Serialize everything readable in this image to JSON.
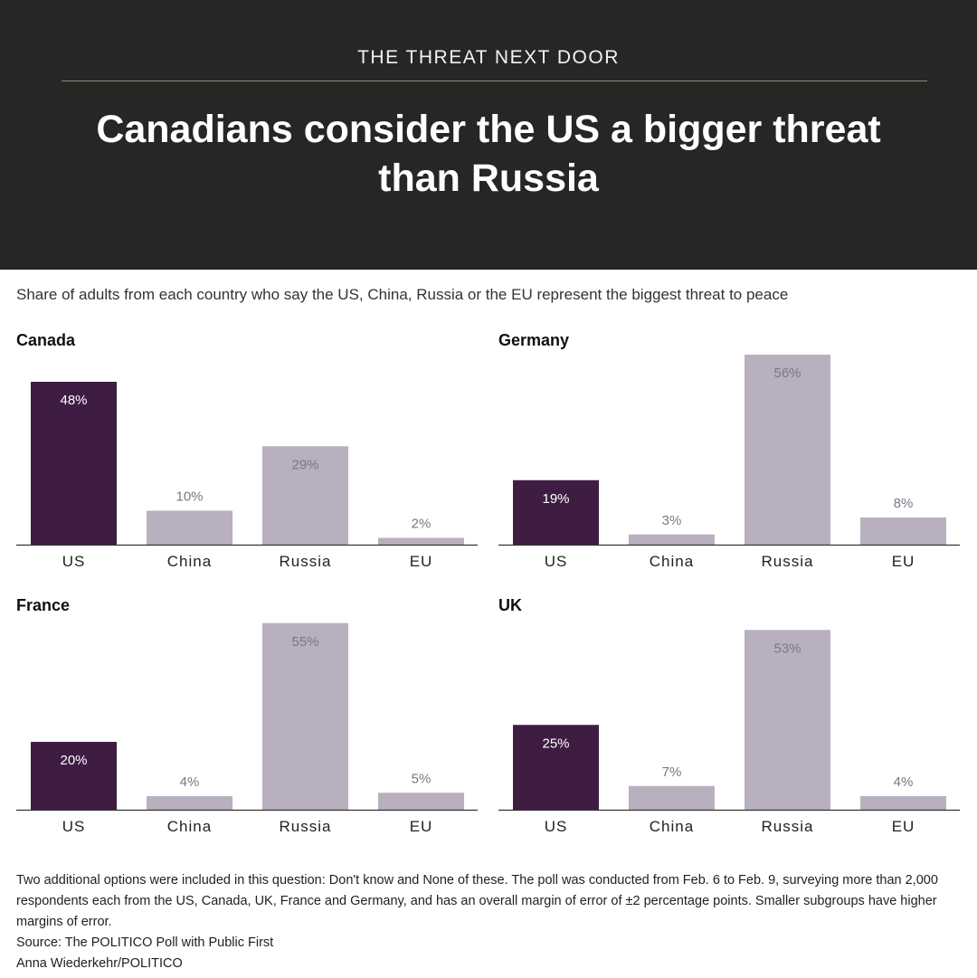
{
  "header": {
    "kicker": "THE THREAT NEXT DOOR",
    "headline": "Canadians consider the US a bigger threat than Russia"
  },
  "subtitle": "Share of adults from each country who say the US, China, Russia or the EU represent the biggest threat to peace",
  "colors": {
    "header_bg": "#262624",
    "us_bar": "#3f1d42",
    "other_bar": "#b9b0bf",
    "us_label": "#ffffff",
    "other_label": "#7d7583"
  },
  "chart_data": [
    {
      "type": "bar",
      "title": "Canada",
      "categories": [
        "US",
        "China",
        "Russia",
        "EU"
      ],
      "values": [
        48,
        10,
        29,
        2
      ],
      "labels": [
        "48%",
        "10%",
        "29%",
        "2%"
      ],
      "ylim": [
        0,
        56
      ]
    },
    {
      "type": "bar",
      "title": "Germany",
      "categories": [
        "US",
        "China",
        "Russia",
        "EU"
      ],
      "values": [
        19,
        3,
        56,
        8
      ],
      "labels": [
        "19%",
        "3%",
        "56%",
        "8%"
      ],
      "ylim": [
        0,
        56
      ]
    },
    {
      "type": "bar",
      "title": "France",
      "categories": [
        "US",
        "China",
        "Russia",
        "EU"
      ],
      "values": [
        20,
        4,
        55,
        5
      ],
      "labels": [
        "20%",
        "4%",
        "55%",
        "5%"
      ],
      "ylim": [
        0,
        56
      ]
    },
    {
      "type": "bar",
      "title": "UK",
      "categories": [
        "US",
        "China",
        "Russia",
        "EU"
      ],
      "values": [
        25,
        7,
        53,
        4
      ],
      "labels": [
        "25%",
        "7%",
        "53%",
        "4%"
      ],
      "ylim": [
        0,
        56
      ]
    }
  ],
  "footer": {
    "note": "Two additional options were included in this question: Don't know and None of these. The poll was conducted from Feb. 6 to Feb. 9, surveying more than 2,000 respondents each from the US, Canada, UK, France and Germany, and has an overall margin of error of ±2 percentage points. Smaller subgroups have higher margins of error.",
    "source": "Source: The POLITICO Poll with Public First",
    "credit": "Anna Wiederkehr/POLITICO"
  }
}
